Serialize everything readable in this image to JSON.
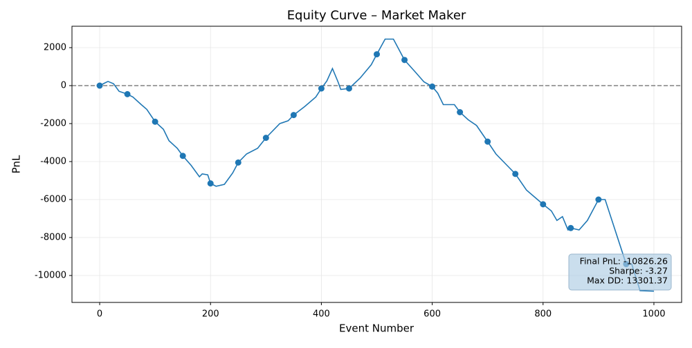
{
  "chart_data": {
    "type": "line",
    "title": "Equity Curve – Market Maker",
    "xlabel": "Event Number",
    "ylabel": "PnL",
    "xlim": [
      -50,
      1050
    ],
    "ylim": [
      -11418,
      3127
    ],
    "xticks": [
      0,
      200,
      400,
      600,
      800,
      1000
    ],
    "yticks": [
      -10000,
      -8000,
      -6000,
      -4000,
      -2000,
      0,
      2000
    ],
    "grid": true,
    "hline": 0,
    "series": [
      {
        "color": "#1f77b4",
        "style": "line",
        "x": [
          0,
          10,
          15,
          25,
          35,
          50,
          60,
          75,
          85,
          100,
          115,
          125,
          140,
          150,
          165,
          180,
          185,
          195,
          200,
          210,
          225,
          240,
          250,
          265,
          285,
          300,
          325,
          340,
          350,
          370,
          390,
          400,
          410,
          420,
          430,
          435,
          450,
          470,
          490,
          500,
          515,
          530,
          540,
          550,
          570,
          585,
          600,
          610,
          620,
          640,
          650,
          665,
          680,
          700,
          715,
          735,
          750,
          770,
          790,
          800,
          815,
          825,
          835,
          845,
          850,
          865,
          880,
          900,
          912,
          950,
          960,
          975,
          1000
        ],
        "values": [
          0,
          150,
          220,
          100,
          -300,
          -450,
          -600,
          -1000,
          -1250,
          -1900,
          -2300,
          -2900,
          -3300,
          -3700,
          -4200,
          -4800,
          -4650,
          -4700,
          -5150,
          -5300,
          -5200,
          -4600,
          -4050,
          -3600,
          -3300,
          -2750,
          -2000,
          -1850,
          -1550,
          -1100,
          -600,
          -150,
          250,
          900,
          200,
          -200,
          -150,
          400,
          1100,
          1650,
          2450,
          2450,
          1900,
          1350,
          700,
          200,
          -50,
          -400,
          -1000,
          -1000,
          -1400,
          -1800,
          -2100,
          -2950,
          -3600,
          -4200,
          -4650,
          -5500,
          -6000,
          -6250,
          -6600,
          -7100,
          -6900,
          -7600,
          -7500,
          -7600,
          -7100,
          -6000,
          -6000,
          -9400,
          -9400,
          -10800,
          -10826.26
        ]
      },
      {
        "color": "#1f77b4",
        "style": "markers",
        "x": [
          0,
          50,
          100,
          150,
          200,
          250,
          300,
          350,
          400,
          450,
          500,
          550,
          600,
          650,
          700,
          750,
          800,
          850,
          900,
          950
        ],
        "values": [
          0,
          -450,
          -1900,
          -3700,
          -5150,
          -4050,
          -2750,
          -1550,
          -150,
          -150,
          1650,
          1350,
          -50,
          -1400,
          -2950,
          -4650,
          -6250,
          -7500,
          -6000,
          -9400
        ]
      }
    ],
    "annotations": [
      "Final PnL: -10826.26",
      "Sharpe: -3.27",
      "Max DD: 13301.37"
    ]
  }
}
